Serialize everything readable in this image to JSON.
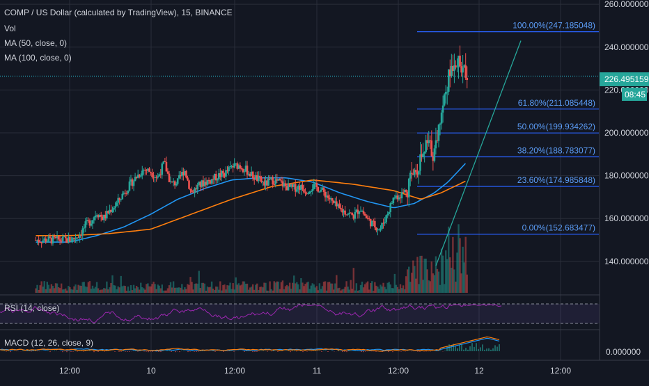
{
  "header": {
    "title": "COMP / US Dollar (calculated by TradingView), 15, BINANCE",
    "indicators": [
      "Vol",
      "MA (50, close, 0)",
      "MA (100, close, 0)"
    ]
  },
  "colors": {
    "background": "#131722",
    "grid": "#2a2e39",
    "axis_text": "#d1d4dc",
    "up": "#26a69a",
    "down": "#ef5350",
    "ma50": "#2196f3",
    "ma100": "#ff7f0e",
    "fib": "#2962ff",
    "fib_label": "#5b9cf6",
    "rsi": "#9c27b0",
    "trendline": "#26a69a",
    "price_line": "#26c6da"
  },
  "price_axis": {
    "ticks": [
      "260.000000",
      "240.000000",
      "220.000000",
      "200.000000",
      "180.000000",
      "160.000000",
      "140.000000"
    ],
    "current_price": "226.495159",
    "countdown": "08:45"
  },
  "time_axis": {
    "ticks": [
      "12:00",
      "10",
      "12:00",
      "11",
      "12:00",
      "12",
      "12:00"
    ]
  },
  "fib_levels": [
    {
      "label": "100.00%(247.185048)",
      "value": 247.185048
    },
    {
      "label": "61.80%(211.085448)",
      "value": 211.085448
    },
    {
      "label": "50.00%(199.934262)",
      "value": 199.934262
    },
    {
      "label": "38.20%(188.783077)",
      "value": 188.783077
    },
    {
      "label": "23.60%(174.985848)",
      "value": 174.985848
    },
    {
      "label": "0.00%(152.683477)",
      "value": 152.683477
    }
  ],
  "rsi": {
    "label": "RSI (14, close)"
  },
  "macd": {
    "label": "MACD (12, 26, close, 9)",
    "tick": "0.000000"
  },
  "chart_data": {
    "type": "candlestick",
    "title": "COMP / US Dollar (calculated by TradingView), 15, BINANCE",
    "x_ticks": [
      "12:00",
      "10",
      "12:00",
      "11",
      "12:00",
      "12",
      "12:00"
    ],
    "ylim": [
      125,
      262
    ],
    "grid": true,
    "series": [
      {
        "name": "COMP / US Dollar",
        "close_path": [
          [
            0,
            150
          ],
          [
            0.04,
            151
          ],
          [
            0.08,
            153
          ],
          [
            0.12,
            157
          ],
          [
            0.16,
            159
          ],
          [
            0.2,
            163
          ],
          [
            0.25,
            160
          ],
          [
            0.3,
            164
          ],
          [
            0.35,
            167
          ],
          [
            0.4,
            172
          ],
          [
            0.45,
            176
          ],
          [
            0.5,
            180
          ],
          [
            0.55,
            183
          ],
          [
            0.6,
            182
          ],
          [
            0.65,
            179
          ],
          [
            0.7,
            186
          ],
          [
            0.75,
            176
          ],
          [
            0.8,
            177
          ],
          [
            0.85,
            183
          ],
          [
            0.9,
            172
          ],
          [
            0.95,
            175
          ],
          [
            1.0,
            177
          ],
          [
            1.05,
            178
          ],
          [
            1.1,
            180
          ],
          [
            1.15,
            181
          ],
          [
            1.2,
            184
          ],
          [
            1.25,
            185
          ],
          [
            1.3,
            183
          ],
          [
            1.35,
            180
          ],
          [
            1.4,
            178
          ],
          [
            1.45,
            176
          ],
          [
            1.5,
            178
          ],
          [
            1.55,
            177
          ],
          [
            1.6,
            175
          ],
          [
            1.65,
            174
          ],
          [
            1.7,
            175
          ],
          [
            1.75,
            173
          ],
          [
            1.8,
            175
          ],
          [
            1.85,
            174
          ],
          [
            1.9,
            171
          ],
          [
            1.95,
            167
          ],
          [
            2.0,
            164
          ],
          [
            2.05,
            163
          ],
          [
            2.1,
            161
          ],
          [
            2.15,
            165
          ],
          [
            2.2,
            160
          ],
          [
            2.25,
            157
          ],
          [
            2.3,
            155
          ],
          [
            2.35,
            162
          ],
          [
            2.4,
            170
          ],
          [
            2.45,
            171
          ],
          [
            2.5,
            174
          ],
          [
            2.55,
            182
          ],
          [
            2.6,
            188
          ],
          [
            2.65,
            195
          ],
          [
            2.7,
            190
          ],
          [
            2.75,
            210
          ],
          [
            2.8,
            225
          ],
          [
            2.85,
            235
          ],
          [
            2.9,
            230
          ],
          [
            2.95,
            226.495
          ]
        ]
      },
      {
        "name": "MA (50, close, 0)",
        "path": [
          [
            0,
            149
          ],
          [
            0.2,
            152
          ],
          [
            0.4,
            156
          ],
          [
            0.6,
            162
          ],
          [
            0.8,
            169
          ],
          [
            1.0,
            174
          ],
          [
            1.2,
            178
          ],
          [
            1.4,
            179
          ],
          [
            1.6,
            179
          ],
          [
            1.8,
            177
          ],
          [
            2.0,
            172
          ],
          [
            2.2,
            168
          ],
          [
            2.4,
            165
          ],
          [
            2.55,
            167
          ],
          [
            2.7,
            172
          ],
          [
            2.8,
            177
          ],
          [
            2.95,
            187
          ]
        ]
      },
      {
        "name": "MA (100, close, 0)",
        "path": [
          [
            0,
            152
          ],
          [
            0.3,
            153
          ],
          [
            0.6,
            155
          ],
          [
            0.9,
            162
          ],
          [
            1.2,
            169
          ],
          [
            1.5,
            175
          ],
          [
            1.8,
            178
          ],
          [
            2.1,
            176
          ],
          [
            2.4,
            173
          ],
          [
            2.6,
            169
          ],
          [
            2.75,
            172
          ],
          [
            2.95,
            178
          ]
        ]
      }
    ],
    "fibonacci_retracement": [
      {
        "level": "100.00%",
        "value": 247.185048
      },
      {
        "level": "61.80%",
        "value": 211.085448
      },
      {
        "level": "50.00%",
        "value": 199.934262
      },
      {
        "level": "38.20%",
        "value": 188.783077
      },
      {
        "level": "23.60%",
        "value": 174.985848
      },
      {
        "level": "0.00%",
        "value": 152.683477
      }
    ],
    "trendline": [
      [
        2.5,
        138
      ],
      [
        3.1,
        243
      ]
    ],
    "last_price": 226.495159
  }
}
